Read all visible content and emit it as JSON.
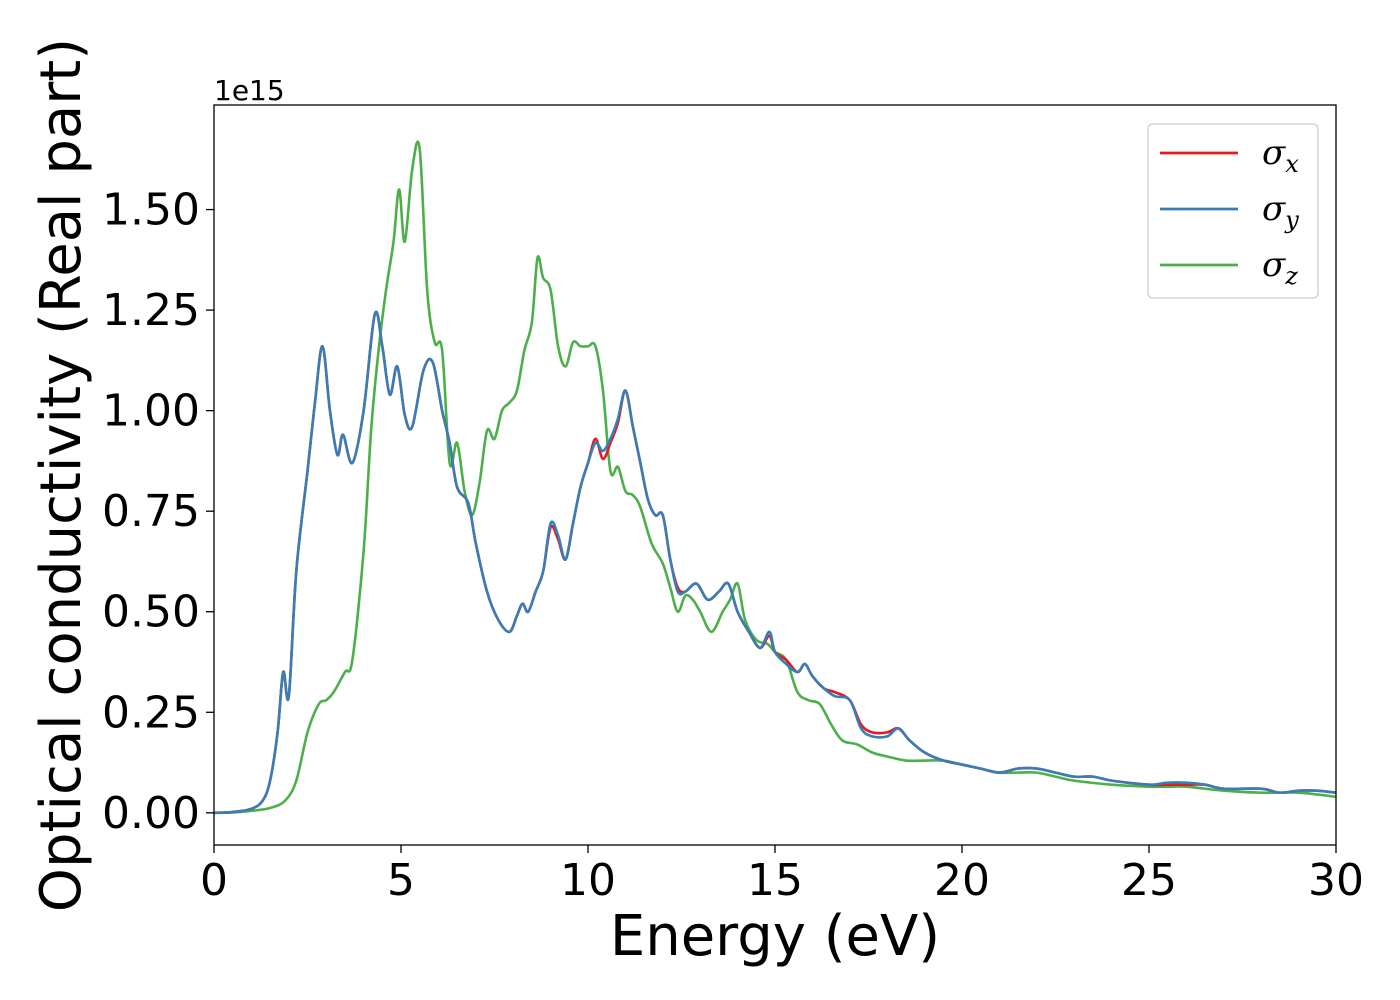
{
  "chart_data": {
    "type": "line",
    "xlabel": "Energy (eV)",
    "ylabel": "Optical conductivity (Real part)",
    "y_offset_label": "1e15",
    "xlim": [
      0,
      30
    ],
    "ylim": [
      -0.08,
      1.76
    ],
    "x_ticks": [
      0,
      5,
      10,
      15,
      20,
      25,
      30
    ],
    "x_tick_labels": [
      "0",
      "5",
      "10",
      "15",
      "20",
      "25",
      "30"
    ],
    "y_ticks": [
      0.0,
      0.25,
      0.5,
      0.75,
      1.0,
      1.25,
      1.5
    ],
    "y_tick_labels": [
      "0.00",
      "0.25",
      "0.50",
      "0.75",
      "1.00",
      "1.25",
      "1.50"
    ],
    "grid": false,
    "legend_position": "top-right",
    "colors": {
      "sigma_x": "#e41a1c",
      "sigma_y": "#377eb8",
      "sigma_z": "#4daf4a"
    },
    "series": [
      {
        "name": "σx",
        "name_base": "σ",
        "name_sub": "x",
        "color": "#e41a1c",
        "x": [
          0,
          0.5,
          1.0,
          1.3,
          1.5,
          1.7,
          1.85,
          2.0,
          2.2,
          2.5,
          2.7,
          2.9,
          3.1,
          3.3,
          3.45,
          3.7,
          4.0,
          4.3,
          4.5,
          4.7,
          4.9,
          5.1,
          5.3,
          5.6,
          5.85,
          6.1,
          6.3,
          6.5,
          6.8,
          7.0,
          7.3,
          7.6,
          7.9,
          8.1,
          8.25,
          8.4,
          8.6,
          8.8,
          9.0,
          9.2,
          9.4,
          9.6,
          9.8,
          10.0,
          10.2,
          10.4,
          10.6,
          10.8,
          11.0,
          11.2,
          11.4,
          11.6,
          11.8,
          12.0,
          12.2,
          12.4,
          12.6,
          12.9,
          13.2,
          13.5,
          13.75,
          14.0,
          14.3,
          14.6,
          14.85,
          15.0,
          15.3,
          15.6,
          15.8,
          16.0,
          16.3,
          16.6,
          17.0,
          17.3,
          17.6,
          18.0,
          18.3,
          18.6,
          19.0,
          19.5,
          20.0,
          20.5,
          21.0,
          21.5,
          22.0,
          22.5,
          23.0,
          23.5,
          24.0,
          25.0,
          25.5,
          26.0,
          26.5,
          27.0,
          28.0,
          28.5,
          29.0,
          29.5,
          30.0
        ],
        "values": [
          0,
          0.002,
          0.01,
          0.03,
          0.08,
          0.2,
          0.35,
          0.29,
          0.6,
          0.85,
          1.02,
          1.16,
          1.0,
          0.89,
          0.94,
          0.87,
          1.0,
          1.24,
          1.16,
          1.04,
          1.11,
          0.99,
          0.96,
          1.1,
          1.12,
          1.0,
          0.92,
          0.81,
          0.77,
          0.67,
          0.55,
          0.48,
          0.45,
          0.49,
          0.52,
          0.5,
          0.55,
          0.6,
          0.71,
          0.68,
          0.63,
          0.72,
          0.81,
          0.87,
          0.93,
          0.88,
          0.92,
          0.97,
          1.05,
          0.96,
          0.87,
          0.78,
          0.74,
          0.74,
          0.63,
          0.56,
          0.55,
          0.57,
          0.53,
          0.55,
          0.57,
          0.5,
          0.45,
          0.41,
          0.44,
          0.4,
          0.38,
          0.35,
          0.37,
          0.34,
          0.31,
          0.3,
          0.28,
          0.22,
          0.2,
          0.2,
          0.21,
          0.18,
          0.15,
          0.13,
          0.12,
          0.11,
          0.1,
          0.11,
          0.11,
          0.1,
          0.09,
          0.09,
          0.08,
          0.07,
          0.07,
          0.07,
          0.07,
          0.06,
          0.06,
          0.05,
          0.055,
          0.055,
          0.05
        ]
      },
      {
        "name": "σy",
        "name_base": "σ",
        "name_sub": "y",
        "color": "#377eb8",
        "x": [
          0,
          0.5,
          1.0,
          1.3,
          1.5,
          1.7,
          1.85,
          2.0,
          2.2,
          2.5,
          2.7,
          2.9,
          3.1,
          3.3,
          3.45,
          3.7,
          4.0,
          4.3,
          4.5,
          4.7,
          4.9,
          5.1,
          5.3,
          5.6,
          5.85,
          6.1,
          6.3,
          6.5,
          6.8,
          7.0,
          7.3,
          7.6,
          7.9,
          8.1,
          8.25,
          8.4,
          8.6,
          8.8,
          9.0,
          9.2,
          9.4,
          9.6,
          9.8,
          10.0,
          10.2,
          10.4,
          10.6,
          10.8,
          11.0,
          11.2,
          11.4,
          11.6,
          11.8,
          12.0,
          12.2,
          12.4,
          12.6,
          12.9,
          13.2,
          13.5,
          13.75,
          14.0,
          14.3,
          14.6,
          14.85,
          15.0,
          15.3,
          15.6,
          15.8,
          16.0,
          16.3,
          16.6,
          17.0,
          17.3,
          17.6,
          18.0,
          18.3,
          18.6,
          19.0,
          19.5,
          20.0,
          20.5,
          21.0,
          21.5,
          22.0,
          22.5,
          23.0,
          23.5,
          24.0,
          25.0,
          25.5,
          26.0,
          26.5,
          27.0,
          28.0,
          28.5,
          29.0,
          29.5,
          30.0
        ],
        "values": [
          0,
          0.002,
          0.01,
          0.03,
          0.08,
          0.2,
          0.35,
          0.29,
          0.6,
          0.85,
          1.02,
          1.16,
          1.0,
          0.89,
          0.94,
          0.87,
          1.0,
          1.24,
          1.16,
          1.04,
          1.11,
          0.99,
          0.96,
          1.1,
          1.12,
          1.0,
          0.92,
          0.81,
          0.77,
          0.67,
          0.55,
          0.48,
          0.45,
          0.49,
          0.52,
          0.5,
          0.55,
          0.6,
          0.72,
          0.69,
          0.63,
          0.72,
          0.81,
          0.87,
          0.92,
          0.9,
          0.93,
          0.98,
          1.05,
          0.96,
          0.87,
          0.78,
          0.74,
          0.74,
          0.63,
          0.55,
          0.55,
          0.57,
          0.53,
          0.55,
          0.57,
          0.5,
          0.45,
          0.41,
          0.45,
          0.4,
          0.37,
          0.35,
          0.37,
          0.34,
          0.31,
          0.29,
          0.28,
          0.21,
          0.19,
          0.19,
          0.21,
          0.18,
          0.15,
          0.13,
          0.12,
          0.11,
          0.1,
          0.11,
          0.11,
          0.1,
          0.09,
          0.09,
          0.08,
          0.07,
          0.075,
          0.075,
          0.07,
          0.06,
          0.06,
          0.05,
          0.055,
          0.055,
          0.05
        ]
      },
      {
        "name": "σz",
        "name_base": "σ",
        "name_sub": "z",
        "color": "#4daf4a",
        "x": [
          0,
          0.5,
          1.0,
          1.5,
          1.9,
          2.2,
          2.5,
          2.8,
          3.0,
          3.2,
          3.5,
          3.7,
          4.0,
          4.2,
          4.4,
          4.6,
          4.8,
          4.95,
          5.1,
          5.3,
          5.5,
          5.7,
          5.9,
          6.1,
          6.3,
          6.5,
          6.7,
          6.9,
          7.1,
          7.3,
          7.5,
          7.7,
          7.9,
          8.1,
          8.3,
          8.5,
          8.65,
          8.8,
          9.0,
          9.2,
          9.4,
          9.6,
          9.8,
          10.0,
          10.2,
          10.4,
          10.6,
          10.8,
          11.0,
          11.2,
          11.4,
          11.7,
          12.0,
          12.2,
          12.4,
          12.6,
          12.8,
          13.0,
          13.3,
          13.6,
          13.8,
          14.0,
          14.2,
          14.5,
          14.8,
          15.0,
          15.3,
          15.6,
          15.9,
          16.2,
          16.5,
          16.8,
          17.2,
          17.6,
          18.0,
          18.5,
          19.0,
          19.5,
          20.0,
          20.5,
          21.0,
          21.5,
          22.0,
          22.5,
          23.0,
          24.0,
          25.0,
          25.5,
          26.0,
          27.0,
          28.0,
          29.0,
          30.0
        ],
        "values": [
          0,
          0.001,
          0.005,
          0.012,
          0.03,
          0.08,
          0.2,
          0.27,
          0.28,
          0.3,
          0.35,
          0.38,
          0.65,
          0.95,
          1.15,
          1.3,
          1.42,
          1.55,
          1.42,
          1.6,
          1.65,
          1.3,
          1.17,
          1.15,
          0.87,
          0.92,
          0.8,
          0.74,
          0.82,
          0.95,
          0.93,
          1.0,
          1.02,
          1.05,
          1.15,
          1.22,
          1.38,
          1.33,
          1.3,
          1.16,
          1.11,
          1.17,
          1.16,
          1.16,
          1.16,
          1.05,
          0.85,
          0.86,
          0.8,
          0.79,
          0.76,
          0.67,
          0.62,
          0.56,
          0.5,
          0.54,
          0.53,
          0.5,
          0.45,
          0.5,
          0.53,
          0.57,
          0.48,
          0.43,
          0.42,
          0.4,
          0.38,
          0.3,
          0.28,
          0.27,
          0.22,
          0.18,
          0.17,
          0.15,
          0.14,
          0.13,
          0.13,
          0.13,
          0.12,
          0.11,
          0.1,
          0.1,
          0.1,
          0.09,
          0.08,
          0.07,
          0.065,
          0.065,
          0.065,
          0.055,
          0.05,
          0.05,
          0.04
        ]
      }
    ]
  }
}
